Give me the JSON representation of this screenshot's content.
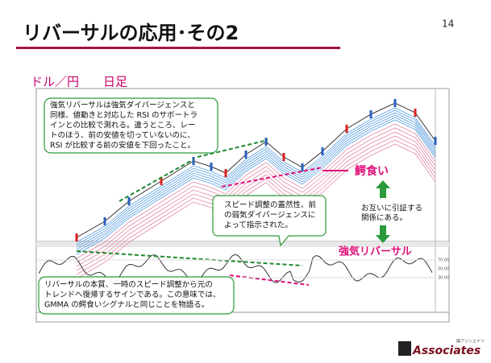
{
  "header": {
    "title": "リバーサルの応用･その2",
    "page_number": "14",
    "subtitle": "ドル／円　　日足"
  },
  "notes": {
    "main": [
      "強気リバーサルは強気ダイバージェンスと",
      "同様、値動きと対応した RSI のサポートラ",
      "インとの比較で測れる。違うところ、レー",
      "トのほう、前の安値を切っていないのに、",
      "RSI が比較する前の安値を下回ったこと。"
    ],
    "callout": [
      "スピード調整の蓋然性、前",
      "の弱気ダイバージェンスに",
      "よって指示された。"
    ],
    "bottom": [
      "リバーサルの本質、一時のスピード調整から元の",
      "トレンドへ復帰するサインである。この意味では、",
      "GMMA の鰐食いシグナルと同じことを物語る。"
    ]
  },
  "labels": {
    "alligator": "鰐食い",
    "mutual": [
      "お互いに引証する",
      "関係にある。"
    ],
    "reversal": "強気リバーサル"
  },
  "rsi_axis": [
    "70.00",
    "50.00",
    "30.00"
  ],
  "logo": {
    "name": "Associates",
    "small": "陳アソシエイツ"
  }
}
